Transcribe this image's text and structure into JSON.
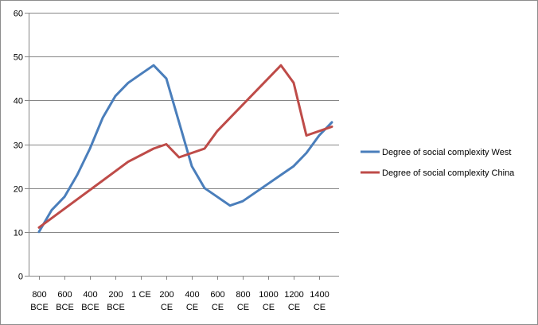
{
  "chart_data": {
    "type": "line",
    "title": "",
    "xlabel": "",
    "ylabel": "",
    "ylim": [
      0,
      60
    ],
    "yticks": [
      0,
      10,
      20,
      30,
      40,
      50,
      60
    ],
    "xlim": [
      -800,
      1500
    ],
    "grid": "horizontal",
    "legend_position": "right",
    "x_ticks": [
      {
        "x": -800,
        "lines": [
          "800",
          "BCE"
        ]
      },
      {
        "x": -600,
        "lines": [
          "600",
          "BCE"
        ]
      },
      {
        "x": -400,
        "lines": [
          "400",
          "BCE"
        ]
      },
      {
        "x": -200,
        "lines": [
          "200",
          "BCE"
        ]
      },
      {
        "x": 0,
        "lines": [
          "1 CE"
        ]
      },
      {
        "x": 200,
        "lines": [
          "200",
          "CE"
        ]
      },
      {
        "x": 400,
        "lines": [
          "400",
          "CE"
        ]
      },
      {
        "x": 600,
        "lines": [
          "600",
          "CE"
        ]
      },
      {
        "x": 800,
        "lines": [
          "800",
          "CE"
        ]
      },
      {
        "x": 1000,
        "lines": [
          "1000",
          "CE"
        ]
      },
      {
        "x": 1200,
        "lines": [
          "1200",
          "CE"
        ]
      },
      {
        "x": 1400,
        "lines": [
          "1400",
          "CE"
        ]
      }
    ],
    "series": [
      {
        "name": "Degree of social complexity West",
        "color": "#4a7ebb",
        "x": [
          -800,
          -700,
          -600,
          -500,
          -400,
          -300,
          -200,
          -100,
          0,
          100,
          200,
          300,
          400,
          500,
          600,
          700,
          800,
          900,
          1000,
          1100,
          1200,
          1300,
          1400,
          1500
        ],
        "y": [
          10,
          15,
          18,
          23,
          29,
          36,
          41,
          44,
          46,
          48,
          45,
          35,
          25,
          20,
          18,
          16,
          17,
          19,
          21,
          23,
          25,
          28,
          32,
          35
        ]
      },
      {
        "name": "Degree of social complexity China",
        "color": "#be4b48",
        "x": [
          -800,
          -100,
          100,
          200,
          300,
          500,
          600,
          800,
          1100,
          1200,
          1300,
          1500
        ],
        "y": [
          11,
          26,
          29,
          30,
          27,
          29,
          33,
          39,
          48,
          44,
          32,
          34
        ]
      }
    ]
  }
}
